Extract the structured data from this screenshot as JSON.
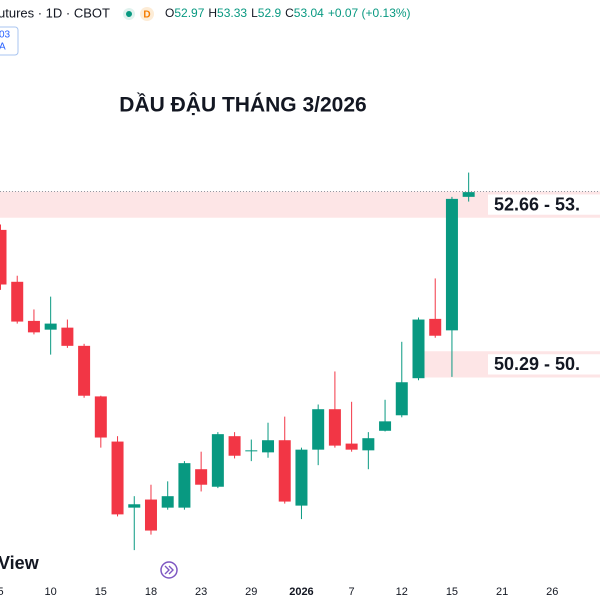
{
  "header": {
    "symbol": "utures · 1D · CBOT",
    "badge": "D",
    "ohlc_labels": [
      "O",
      "H",
      "L",
      "C"
    ],
    "change": "+0.07 (+0.13%)",
    "side_box": [
      "03",
      "A"
    ],
    "watermark": "View"
  },
  "chart_data": {
    "type": "candlestick",
    "title": "DẦU ĐẬU THÁNG 3/2026",
    "categories": [
      "5",
      null,
      null,
      "10",
      null,
      null,
      "15",
      null,
      null,
      "18",
      null,
      null,
      "23",
      null,
      null,
      "29",
      null,
      null,
      "2026",
      null,
      null,
      "7",
      null,
      null,
      "12",
      null,
      null,
      "15",
      null,
      null,
      "21",
      null,
      null,
      "26"
    ],
    "open": [
      52.48,
      51.71,
      51.13,
      51.0,
      51.03,
      50.76,
      50.01,
      49.34,
      48.36,
      48.48,
      48.36,
      48.36,
      48.93,
      48.67,
      49.42,
      49.2,
      49.18,
      49.36,
      48.39,
      49.22,
      49.82,
      49.31,
      49.21,
      49.5,
      49.73,
      50.28,
      51.16,
      50.99,
      52.97,
      null,
      null,
      null,
      null,
      null
    ],
    "high": [
      52.56,
      51.8,
      51.3,
      51.49,
      51.15,
      50.79,
      50.02,
      49.42,
      48.53,
      48.7,
      48.75,
      49.05,
      49.19,
      49.48,
      49.48,
      49.37,
      49.62,
      49.71,
      49.25,
      49.89,
      50.38,
      49.93,
      49.48,
      49.96,
      50.82,
      51.18,
      51.76,
      52.97,
      53.33,
      null,
      null,
      null,
      null,
      null
    ],
    "low": [
      51.59,
      51.09,
      50.93,
      50.63,
      50.73,
      49.99,
      49.25,
      48.23,
      47.73,
      47.96,
      48.33,
      48.33,
      48.6,
      48.65,
      49.09,
      49.05,
      49.1,
      48.42,
      48.19,
      48.99,
      49.25,
      49.19,
      48.93,
      49.49,
      49.7,
      50.25,
      50.88,
      50.3,
      52.9,
      null,
      null,
      null,
      null,
      null
    ],
    "close": [
      51.67,
      51.12,
      50.96,
      51.09,
      50.76,
      50.02,
      49.4,
      48.26,
      48.41,
      48.02,
      48.53,
      49.02,
      48.7,
      49.45,
      49.13,
      49.21,
      49.36,
      48.45,
      49.22,
      49.82,
      49.28,
      49.22,
      49.39,
      49.64,
      50.22,
      51.15,
      50.91,
      52.94,
      53.04,
      null,
      null,
      null,
      null,
      null
    ],
    "up_color": "#089981",
    "down_color": "#f23645",
    "ylim": [
      46.99,
      55.89
    ],
    "zones": [
      {
        "low": 52.66,
        "high": 53.05,
        "label": "52.66 - 53."
      },
      {
        "low": 50.29,
        "high": 50.68,
        "label": "50.29 - 50."
      }
    ],
    "zone_color": "#fde5e6"
  }
}
